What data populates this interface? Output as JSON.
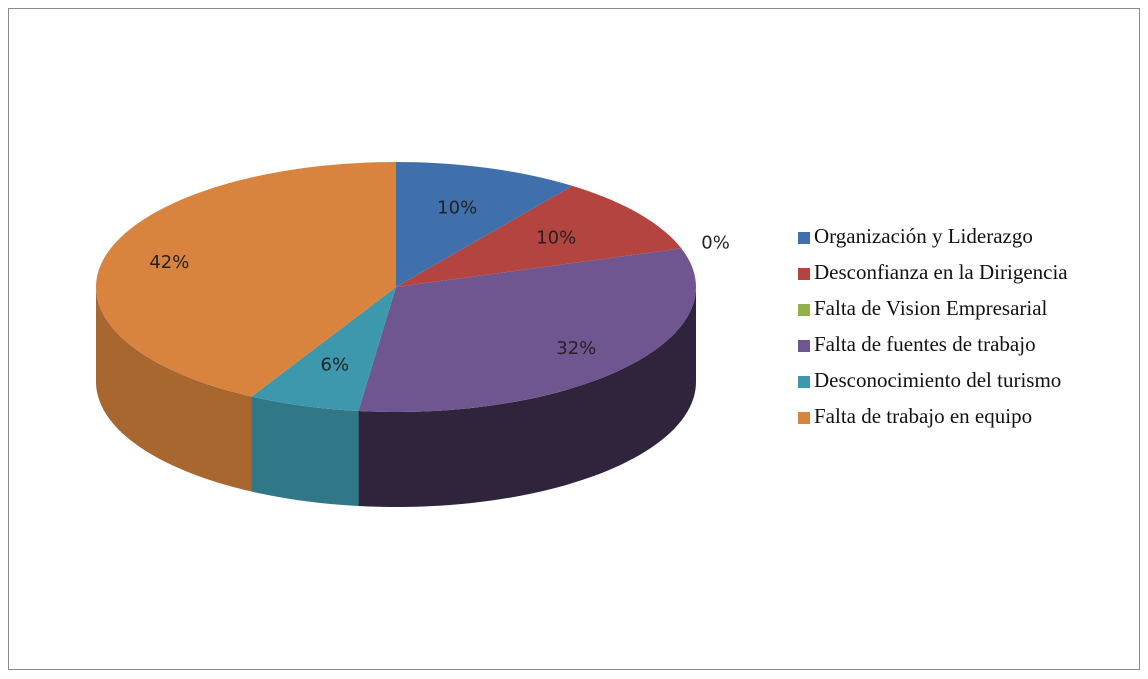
{
  "chart_data": {
    "type": "pie",
    "categories": [
      "Organización y Liderazgo",
      "Desconfianza en la Dirigencia",
      "Falta de Vision Empresarial",
      "Falta de fuentes de trabajo",
      "Desconocimiento del turismo",
      "Falta de trabajo en equipo"
    ],
    "values": [
      10,
      10,
      0,
      32,
      6,
      42
    ],
    "value_labels": [
      "10%",
      "10%",
      "0%",
      "32%",
      "6%",
      "42%"
    ],
    "colors": [
      "#3f70ab",
      "#b4443f",
      "#8fb04a",
      "#6f5690",
      "#3d98ad",
      "#d9843e"
    ],
    "legend": "right"
  }
}
